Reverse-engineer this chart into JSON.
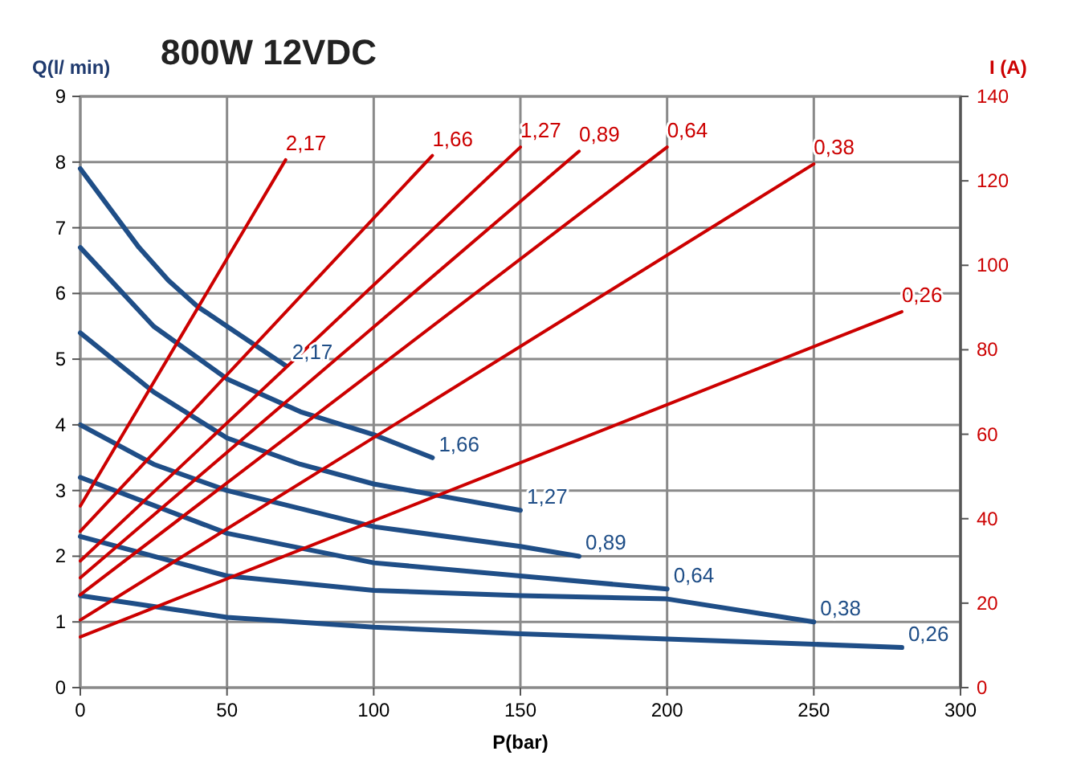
{
  "chart_data": {
    "type": "line",
    "title": "800W 12VDC",
    "xlabel": "P(bar)",
    "ylabel": "Q(l/ min)",
    "y2label": "I (A)",
    "xlim": [
      0,
      300
    ],
    "xticks": [
      0,
      50,
      100,
      150,
      200,
      250,
      300
    ],
    "ylim": [
      0,
      9
    ],
    "yticks": [
      0,
      1,
      2,
      3,
      4,
      5,
      6,
      7,
      8,
      9
    ],
    "y2lim": [
      0,
      140
    ],
    "y2ticks": [
      0,
      20,
      40,
      60,
      80,
      100,
      120,
      140
    ],
    "grid": true,
    "marker": "none",
    "line_style": "solid",
    "series": [
      {
        "name": "2,17",
        "color": "#1f4e87",
        "x": [
          0,
          10,
          20,
          30,
          40,
          50,
          60,
          70
        ],
        "values": [
          7.9,
          7.3,
          6.7,
          6.2,
          5.8,
          5.5,
          5.2,
          4.9
        ]
      },
      {
        "name": "1,66",
        "color": "#1f4e87",
        "x": [
          0,
          25,
          50,
          75,
          100,
          120
        ],
        "values": [
          6.7,
          5.5,
          4.7,
          4.2,
          3.85,
          3.5
        ]
      },
      {
        "name": "1,27",
        "color": "#1f4e87",
        "x": [
          0,
          25,
          50,
          75,
          100,
          125,
          150
        ],
        "values": [
          5.4,
          4.5,
          3.8,
          3.4,
          3.1,
          2.9,
          2.7
        ]
      },
      {
        "name": "0,89",
        "color": "#1f4e87",
        "x": [
          0,
          25,
          50,
          100,
          150,
          170
        ],
        "values": [
          4.0,
          3.4,
          3.0,
          2.45,
          2.15,
          2.0
        ]
      },
      {
        "name": "0,64",
        "color": "#1f4e87",
        "x": [
          0,
          50,
          100,
          150,
          200
        ],
        "values": [
          3.2,
          2.35,
          1.9,
          1.7,
          1.5
        ]
      },
      {
        "name": "0,38",
        "color": "#1f4e87",
        "x": [
          0,
          50,
          100,
          150,
          200,
          250
        ],
        "values": [
          2.3,
          1.7,
          1.48,
          1.4,
          1.35,
          1.0
        ]
      },
      {
        "name": "0,26",
        "color": "#1f4e87",
        "x": [
          0,
          50,
          100,
          150,
          200,
          250,
          280
        ],
        "values": [
          1.4,
          1.07,
          0.92,
          0.82,
          0.74,
          0.66,
          0.61
        ]
      },
      {
        "name": "2,17",
        "color": "#cc0000",
        "axis": "y2",
        "x": [
          0,
          70
        ],
        "values": [
          43,
          125
        ]
      },
      {
        "name": "1,66",
        "color": "#cc0000",
        "axis": "y2",
        "x": [
          0,
          120
        ],
        "values": [
          37,
          126
        ]
      },
      {
        "name": "1,27",
        "color": "#cc0000",
        "axis": "y2",
        "x": [
          0,
          150
        ],
        "values": [
          30,
          128
        ]
      },
      {
        "name": "0,89",
        "color": "#cc0000",
        "axis": "y2",
        "x": [
          0,
          170
        ],
        "values": [
          26,
          127
        ]
      },
      {
        "name": "0,64",
        "color": "#cc0000",
        "axis": "y2",
        "x": [
          0,
          200
        ],
        "values": [
          22,
          128
        ]
      },
      {
        "name": "0,38",
        "color": "#cc0000",
        "axis": "y2",
        "x": [
          0,
          250
        ],
        "values": [
          16,
          124
        ]
      },
      {
        "name": "0,26",
        "color": "#cc0000",
        "axis": "y2",
        "x": [
          0,
          280
        ],
        "values": [
          12,
          89
        ]
      }
    ]
  }
}
